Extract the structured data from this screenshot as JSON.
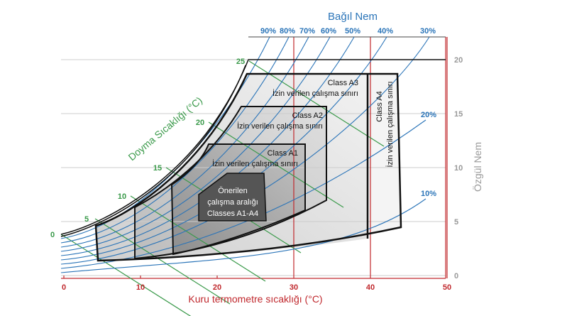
{
  "title": "Bağıl Nem",
  "x_axis": {
    "label": "Kuru termometre sıcaklığı (°C)",
    "ticks": [
      "0",
      "10",
      "20",
      "30",
      "40",
      "50"
    ]
  },
  "y_axis": {
    "label": "Özgül Nem",
    "ticks": [
      "0",
      "5",
      "10",
      "15",
      "20"
    ]
  },
  "wet_bulb": {
    "label": "Doyma Sıcaklığı (°C)",
    "ticks": [
      "0",
      "5",
      "10",
      "15",
      "20",
      "25"
    ]
  },
  "rh": {
    "top_ticks": [
      "90%",
      "80%",
      "70%",
      "60%",
      "50%",
      "40%",
      "30%"
    ],
    "side_ticks": [
      "20%",
      "10%"
    ]
  },
  "regions": {
    "a3": {
      "name": "Class A3",
      "desc": "İzin verilen çalışma sınırı"
    },
    "a2": {
      "name": "Class A2",
      "desc": "İzin verilen çalışma sınırı"
    },
    "a1": {
      "name": "Class A1",
      "desc": "İzin verilen çalışma sınırı"
    },
    "a4": {
      "name": "Class A4",
      "desc": "İzin verilen çalışma sınırı"
    },
    "recommended": {
      "line1": "Önerilen",
      "line2": "çalışma aralığı",
      "line3": "Classes A1-A4"
    }
  },
  "colors": {
    "dry_bulb": "#c0282d",
    "rh": "#2a74b8",
    "wet_bulb": "#3a9a4a",
    "humidity": "#999999"
  }
}
